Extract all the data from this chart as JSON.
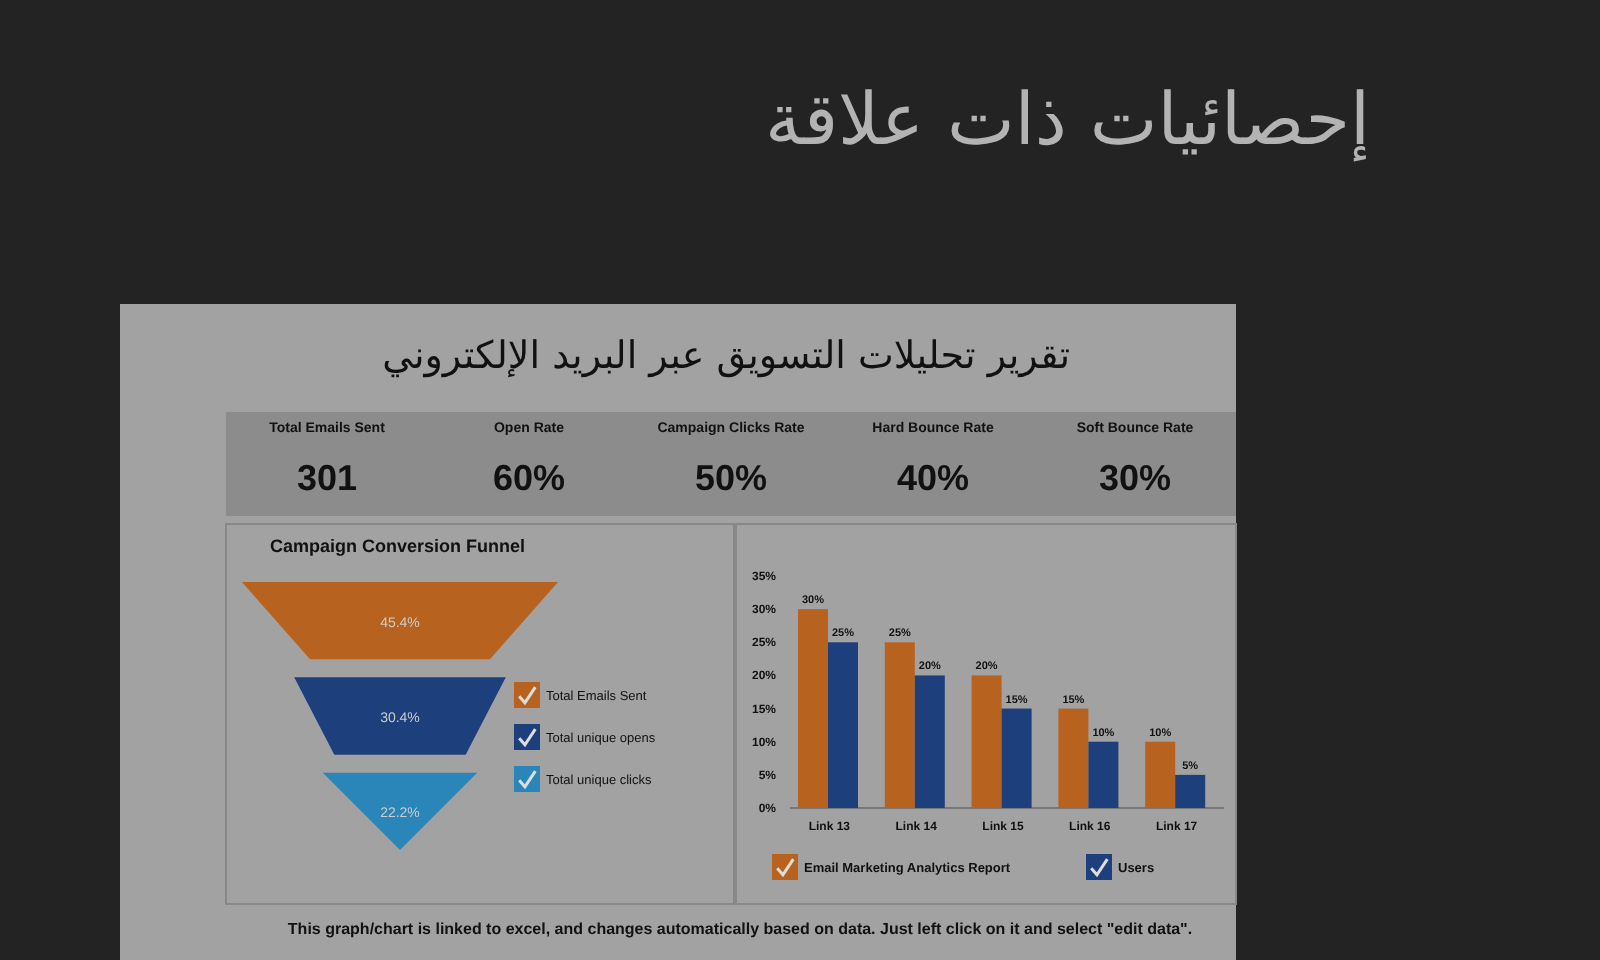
{
  "chart_data": [
    {
      "type": "other",
      "title": "إحصائيات ذات علاقة",
      "subtitle": "تقرير تحليلات التسويق عبر البريد الإلكتروني",
      "categories": [
        "Total Emails Sent",
        "Open Rate",
        "Campaign Clicks Rate",
        "Hard Bounce Rate",
        "Soft  Bounce Rate"
      ],
      "values": [
        301,
        60,
        50,
        40,
        30
      ],
      "value_labels": [
        "301",
        "60%",
        "50%",
        "40%",
        "30%"
      ],
      "annotations": [
        "This graph/chart is linked to excel, and changes automatically based on data. Just left click on it and select \"edit data\"."
      ]
    },
    {
      "type": "other",
      "title": "Campaign Conversion Funnel",
      "categories": [
        "Total Emails Sent",
        "Total unique opens",
        "Total unique clicks"
      ],
      "values": [
        45.4,
        30.4,
        22.2
      ],
      "value_labels": [
        "45.4%",
        "30.4%",
        "22.2%"
      ],
      "colors": [
        "#b8621f",
        "#1d3f7c",
        "#2a86b8"
      ]
    },
    {
      "type": "bar",
      "categories": [
        "Link 13",
        "Link 14",
        "Link 15",
        "Link 16",
        "Link 17"
      ],
      "ylim": [
        0,
        35
      ],
      "yticks": [
        {
          "value": 0,
          "label": "0%"
        },
        {
          "value": 5,
          "label": "5%"
        },
        {
          "value": 10,
          "label": "10%"
        },
        {
          "value": 15,
          "label": "15%"
        },
        {
          "value": 20,
          "label": "20%"
        },
        {
          "value": 25,
          "label": "25%"
        },
        {
          "value": 30,
          "label": "30%"
        },
        {
          "value": 35,
          "label": "35%"
        }
      ],
      "series": [
        {
          "name": "Email Marketing Analytics Report",
          "color": "#b8621f",
          "values": [
            30,
            25,
            20,
            15,
            10
          ],
          "value_labels": [
            "30%",
            "25%",
            "20%",
            "15%",
            "10%"
          ]
        },
        {
          "name": "Users",
          "color": "#1d3f7c",
          "values": [
            25,
            20,
            15,
            10,
            5
          ],
          "value_labels": [
            "25%",
            "20%",
            "15%",
            "10%",
            "5%"
          ]
        }
      ],
      "legend": "bottom"
    }
  ]
}
